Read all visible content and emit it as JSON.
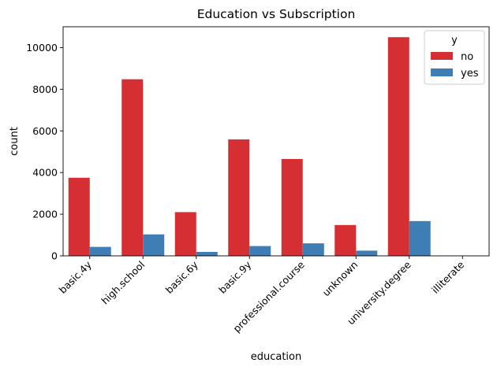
{
  "chart_data": {
    "type": "bar",
    "title": "Education vs Subscription",
    "xlabel": "education",
    "ylabel": "count",
    "categories": [
      "basic.4y",
      "high.school",
      "basic.6y",
      "basic.9y",
      "professional.course",
      "unknown",
      "university.degree",
      "illiterate"
    ],
    "series": [
      {
        "name": "no",
        "values": [
          3750,
          8480,
          2100,
          5590,
          4650,
          1480,
          10500,
          14
        ]
      },
      {
        "name": "yes",
        "values": [
          430,
          1030,
          190,
          470,
          600,
          250,
          1670,
          4
        ]
      }
    ],
    "ylim": [
      0,
      11000
    ],
    "yticks": [
      0,
      2000,
      4000,
      6000,
      8000,
      10000
    ],
    "legend": {
      "title": "y",
      "position": "top-right"
    },
    "grid": false,
    "colors": {
      "no": "#d62f33",
      "yes": "#3f7db5"
    }
  }
}
